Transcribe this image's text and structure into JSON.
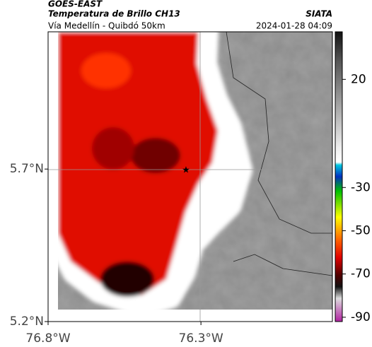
{
  "header": {
    "source": "GOES-EAST",
    "title": "Temperatura de Brillo CH13",
    "brand": "SIATA",
    "subtitle": "Vía Medellín - Quibdó 50km",
    "datetime": "2024-01-28 04:09"
  },
  "map": {
    "xlim": [
      -76.8,
      -75.87
    ],
    "ylim": [
      5.2,
      6.15
    ],
    "xticks": [
      {
        "value": -76.8,
        "label": "76.8°W"
      },
      {
        "value": -76.3,
        "label": "76.3°W"
      }
    ],
    "yticks": [
      {
        "value": 5.7,
        "label": "5.7°N"
      },
      {
        "value": 5.2,
        "label": "5.2°N"
      }
    ]
  },
  "colorbar": {
    "lim": [
      -92,
      42
    ],
    "ticks": [
      20,
      -30,
      -50,
      -70,
      -90
    ]
  }
}
